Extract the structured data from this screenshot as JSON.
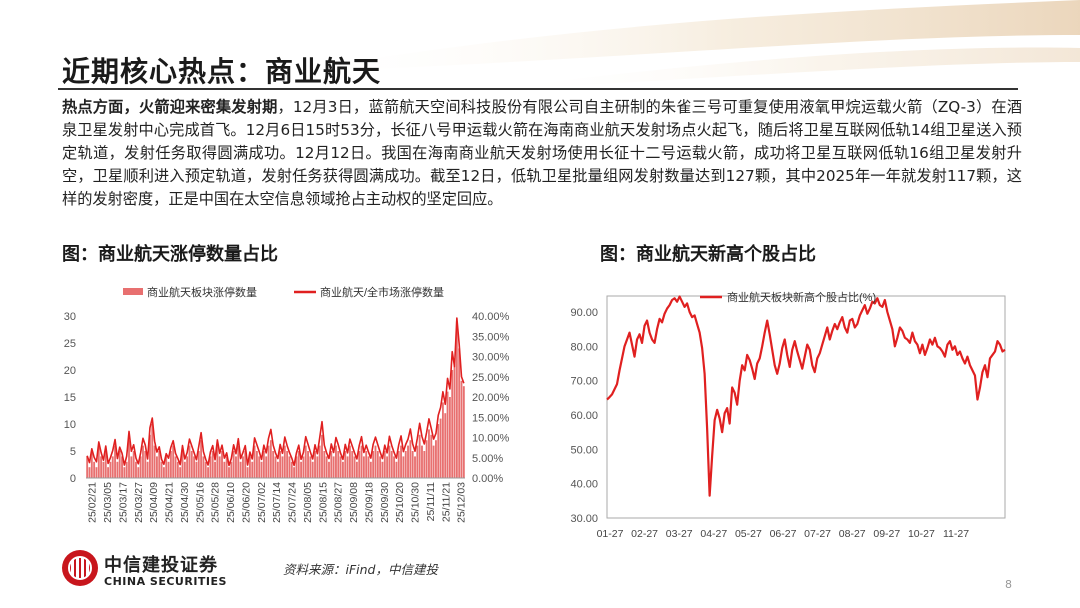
{
  "page": {
    "title": "近期核心热点：商业航天",
    "paragraph_bold": "热点方面，火箭迎来密集发射期",
    "paragraph_text": "，12月3日，蓝箭航天空间科技股份有限公司自主研制的朱雀三号可重复使用液氧甲烷运载火箭（ZQ-3）在酒泉卫星发射中心完成首飞。12月6日15时53分，长征八号甲运载火箭在海南商业航天发射场点火起飞，随后将卫星互联网低轨14组卫星送入预定轨道，发射任务取得圆满成功。12月12日。我国在海南商业航天发射场使用长征十二号运载火箭，成功将卫星互联网低轨16组卫星发射升空，卫星顺利进入预定轨道，发射任务获得圆满成功。截至12日，低轨卫星批量组网发射数量达到127颗，其中2025年一年就发射117颗，这样的发射密度，正是中国在太空信息领域抢占主动权的坚定回应。",
    "source": "资料来源：iFind，中信建投",
    "page_number": "8",
    "logo_cn": "中信建投证券",
    "logo_en": "CHINA SECURITIES"
  },
  "colors": {
    "red": "#e02020",
    "bar": "#e87070",
    "axis": "#999999",
    "grid": "#d9d9d9"
  },
  "chart_data": [
    {
      "type": "bar+line",
      "title": "图：商业航天涨停数量占比",
      "legend_position": "top",
      "series": [
        {
          "name": "商业航天板块涨停数量",
          "kind": "bar",
          "axis": "left",
          "color": "#e87070",
          "values": [
            4,
            2,
            5,
            3,
            2,
            6,
            4,
            3,
            5,
            2,
            3,
            4,
            6,
            3,
            5,
            4,
            2,
            3,
            7,
            4,
            5,
            3,
            2,
            4,
            6,
            5,
            3,
            8,
            10,
            6,
            4,
            5,
            3,
            2,
            4,
            3,
            5,
            6,
            4,
            3,
            2,
            5,
            3,
            4,
            6,
            5,
            4,
            3,
            5,
            7,
            4,
            3,
            2,
            4,
            5,
            3,
            6,
            4,
            5,
            3,
            4,
            2,
            3,
            5,
            4,
            6,
            3,
            4,
            5,
            2,
            4,
            3,
            6,
            5,
            4,
            3,
            5,
            4,
            6,
            7,
            5,
            4,
            3,
            5,
            4,
            6,
            5,
            4,
            3,
            2,
            4,
            5,
            3,
            4,
            6,
            5,
            4,
            3,
            5,
            4,
            6,
            8,
            5,
            4,
            3,
            5,
            4,
            6,
            5,
            4,
            3,
            5,
            4,
            6,
            5,
            4,
            3,
            5,
            6,
            4,
            5,
            4,
            3,
            5,
            6,
            5,
            4,
            3,
            5,
            4,
            6,
            5,
            4,
            3,
            5,
            6,
            4,
            5,
            6,
            7,
            5,
            4,
            6,
            8,
            6,
            5,
            7,
            9,
            8,
            6,
            7,
            10,
            11,
            14,
            12,
            16,
            15,
            20,
            22,
            29,
            24,
            18,
            17
          ]
        },
        {
          "name": "商业航天/全市场涨停数量",
          "kind": "line",
          "axis": "right",
          "color": "#e02020",
          "values": [
            5.5,
            3.8,
            7.2,
            5.1,
            4.0,
            8.9,
            6.3,
            4.4,
            7.9,
            3.6,
            5.0,
            6.8,
            9.5,
            4.8,
            7.6,
            6.1,
            3.2,
            5.4,
            11.5,
            6.6,
            8.2,
            4.9,
            3.5,
            6.2,
            9.8,
            8.1,
            4.7,
            12.4,
            14.8,
            9.1,
            6.4,
            7.7,
            4.6,
            3.4,
            6.0,
            4.9,
            7.6,
            9.2,
            6.1,
            4.8,
            3.3,
            8.0,
            4.7,
            6.3,
            9.6,
            7.9,
            6.2,
            4.5,
            7.8,
            11.2,
            6.5,
            4.6,
            3.2,
            6.4,
            8.0,
            4.5,
            9.4,
            6.1,
            8.1,
            4.9,
            6.2,
            3.1,
            4.8,
            8.2,
            6.0,
            9.7,
            4.8,
            6.3,
            8.0,
            3.2,
            6.4,
            4.7,
            9.9,
            8.2,
            6.5,
            4.6,
            8.1,
            6.2,
            9.8,
            12.0,
            8.1,
            6.2,
            4.8,
            8.3,
            6.1,
            10.1,
            8.0,
            6.3,
            4.9,
            3.1,
            6.2,
            8.1,
            4.6,
            6.3,
            10.2,
            8.3,
            6.4,
            4.7,
            8.2,
            6.0,
            9.9,
            13.9,
            8.1,
            6.2,
            4.8,
            8.4,
            6.3,
            10.0,
            8.2,
            6.1,
            4.6,
            8.3,
            6.2,
            9.6,
            7.9,
            6.2,
            4.7,
            8.0,
            10.2,
            6.3,
            8.1,
            6.4,
            4.9,
            8.3,
            10.1,
            8.2,
            6.4,
            4.8,
            8.1,
            6.2,
            10.3,
            8.0,
            6.3,
            4.9,
            8.2,
            10.4,
            6.5,
            8.3,
            9.6,
            12.1,
            8.4,
            6.6,
            9.8,
            13.5,
            10.2,
            8.4,
            11.3,
            14.6,
            12.2,
            9.6,
            11.0,
            15.5,
            17.4,
            21.3,
            18.2,
            24.6,
            22.0,
            31.2,
            27.5,
            39.5,
            33.0,
            25.0,
            23.4
          ]
        }
      ],
      "x_tick_labels": [
        "25/02/21",
        "25/03/05",
        "25/03/17",
        "25/03/27",
        "25/04/09",
        "25/04/21",
        "25/04/30",
        "25/05/16",
        "25/05/28",
        "25/06/10",
        "25/06/20",
        "25/07/02",
        "25/07/14",
        "25/07/24",
        "25/08/05",
        "25/08/15",
        "25/08/27",
        "25/09/08",
        "25/09/18",
        "25/09/30",
        "25/10/20",
        "25/10/30",
        "25/11/11",
        "25/11/21",
        "25/12/03"
      ],
      "y_left_ticks": [
        "0",
        "5",
        "10",
        "15",
        "20",
        "25",
        "30"
      ],
      "y_left_range": [
        0,
        30
      ],
      "y_right_ticks": [
        "0.00%",
        "5.00%",
        "10.00%",
        "15.00%",
        "20.00%",
        "25.00%",
        "30.00%",
        "35.00%",
        "40.00%"
      ],
      "y_right_range": [
        0,
        40
      ],
      "grid": false
    },
    {
      "type": "line",
      "title": "图：商业航天新高个股占比",
      "legend_position": "top",
      "series": [
        {
          "name": "商业航天板块新高个股占比(%)",
          "color": "#e02020",
          "values": [
            64.5,
            65.2,
            66.0,
            67.5,
            69.0,
            73.0,
            76.5,
            80.0,
            82.0,
            84.0,
            80.5,
            77.0,
            82.0,
            83.5,
            81.0,
            86.0,
            87.5,
            84.0,
            82.0,
            81.0,
            85.0,
            88.0,
            87.0,
            89.5,
            91.0,
            92.0,
            93.5,
            94.0,
            93.0,
            94.5,
            93.0,
            91.5,
            92.5,
            90.0,
            88.5,
            89.0,
            86.5,
            84.0,
            79.5,
            72.0,
            56.0,
            36.5,
            48.0,
            58.5,
            61.5,
            59.0,
            55.0,
            60.5,
            62.0,
            57.5,
            68.0,
            66.5,
            63.0,
            70.0,
            74.5,
            73.0,
            77.5,
            76.0,
            73.5,
            70.5,
            75.0,
            76.5,
            80.0,
            84.0,
            87.5,
            83.5,
            79.0,
            74.5,
            72.0,
            75.0,
            79.5,
            82.0,
            77.5,
            74.0,
            79.0,
            81.5,
            78.5,
            76.0,
            73.5,
            77.0,
            80.5,
            79.0,
            74.5,
            72.5,
            76.5,
            78.0,
            80.5,
            83.0,
            85.5,
            82.0,
            84.5,
            86.5,
            85.0,
            87.0,
            88.5,
            85.5,
            84.0,
            87.5,
            88.0,
            85.5,
            86.5,
            89.0,
            90.5,
            92.0,
            89.5,
            91.0,
            93.0,
            92.5,
            94.0,
            92.0,
            91.5,
            93.5,
            90.0,
            87.5,
            85.0,
            80.0,
            82.5,
            85.5,
            84.5,
            82.5,
            82.0,
            81.0,
            84.0,
            81.5,
            80.5,
            78.0,
            80.5,
            77.5,
            79.5,
            82.0,
            80.5,
            82.5,
            80.0,
            79.5,
            78.5,
            77.0,
            80.5,
            81.5,
            79.0,
            80.0,
            77.5,
            78.5,
            76.5,
            75.0,
            77.0,
            74.5,
            73.0,
            71.5,
            64.5,
            68.0,
            72.5,
            74.5,
            71.0,
            76.5,
            77.5,
            78.5,
            81.5,
            80.5,
            78.5,
            79.0
          ]
        }
      ],
      "x_tick_labels": [
        "01-27",
        "02-27",
        "03-27",
        "04-27",
        "05-27",
        "06-27",
        "07-27",
        "08-27",
        "09-27",
        "10-27",
        "11-27"
      ],
      "y_ticks": [
        "30.00",
        "40.00",
        "50.00",
        "60.00",
        "70.00",
        "80.00",
        "90.00"
      ],
      "y_range": [
        30,
        95
      ],
      "grid": false
    }
  ]
}
